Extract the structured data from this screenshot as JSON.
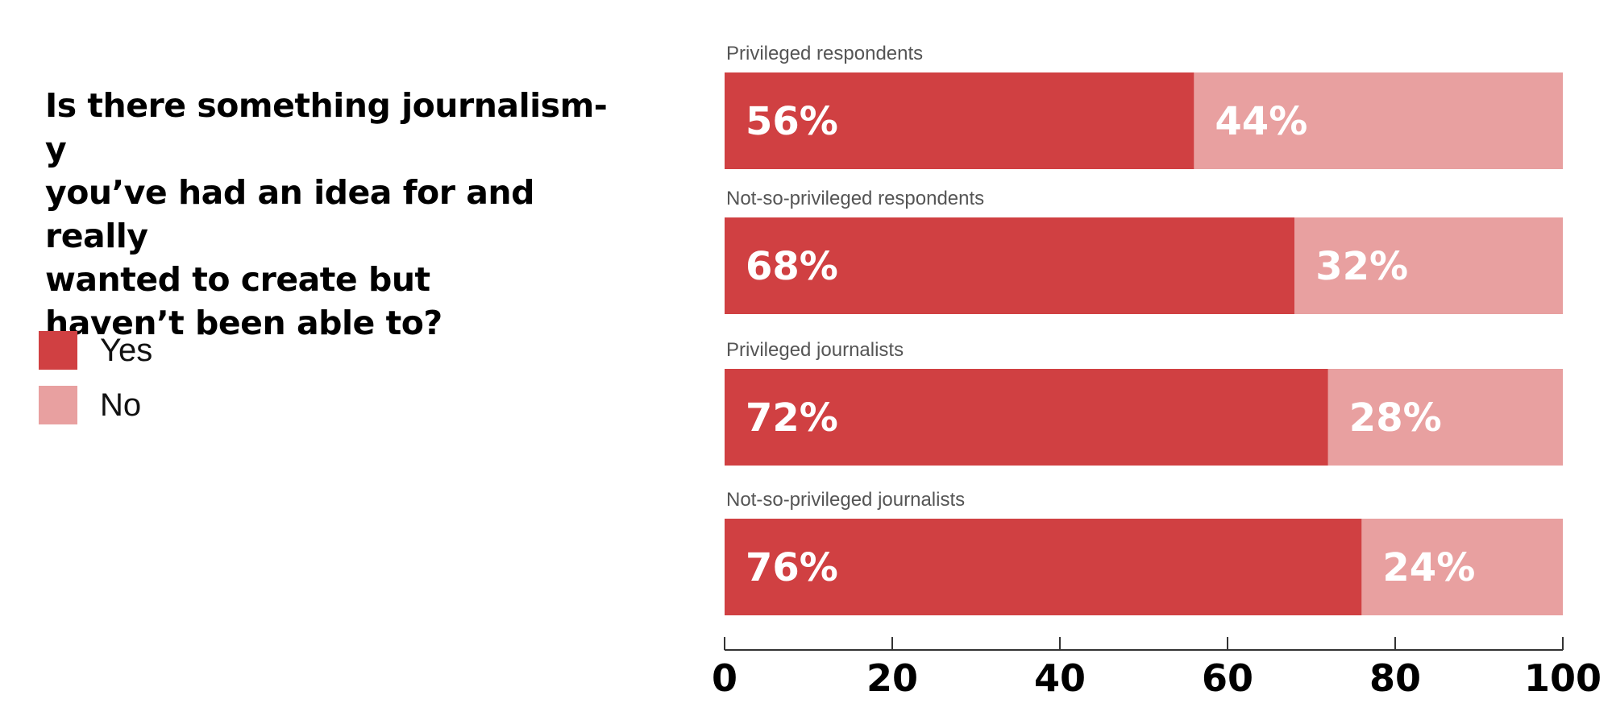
{
  "chart_data": {
    "type": "bar",
    "orientation": "horizontal",
    "stacked": true,
    "title": "Is there something journalism-y\nyou’ve had an idea for and really\nwanted to create but\nhaven’t been able to?",
    "categories": [
      "Privileged respondents",
      "Not-so-privileged respondents",
      "Privileged journalists",
      "Not-so-privileged journalists"
    ],
    "series": [
      {
        "name": "Yes",
        "color": "#d04042",
        "values": [
          56,
          68,
          72,
          76
        ]
      },
      {
        "name": "No",
        "color": "#e8a0a0",
        "values": [
          44,
          32,
          28,
          24
        ]
      }
    ],
    "value_suffix": "%",
    "xlim": [
      0,
      100
    ],
    "xticks": [
      0,
      20,
      40,
      60,
      80,
      100
    ],
    "grid": false,
    "legend": "left"
  }
}
